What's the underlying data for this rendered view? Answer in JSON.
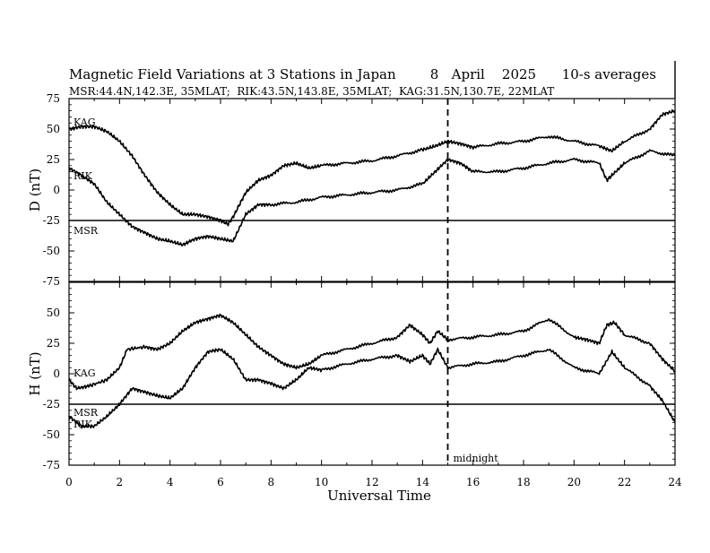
{
  "chart_data": [
    {
      "type": "line",
      "panel": "top",
      "title": "Magnetic Field Variations at 3 Stations in Japan        8   April    2025      10-s averages",
      "subtitle": "MSR:44.4N,142.3E, 35MLAT;  RIK:43.5N,143.8E, 35MLAT;  KAG:31.5N,130.7E, 22MLAT",
      "ylabel": "D (nT)",
      "xlabel": "",
      "xlim": [
        0,
        24
      ],
      "ylim": [
        -75,
        75
      ],
      "yticks": [
        "75",
        "50",
        "25",
        "0",
        "-25",
        "-50",
        "-75"
      ],
      "station_labels": [
        "KAG",
        "RIK",
        "MSR"
      ],
      "series": [
        {
          "name": "KAG",
          "x": [
            0,
            0.5,
            1,
            1.5,
            2,
            2.5,
            3,
            3.5,
            4,
            4.5,
            5,
            5.5,
            6,
            6.3,
            6.5,
            6.8,
            7,
            7.5,
            8,
            8.5,
            9,
            9.5,
            10,
            11,
            12,
            13,
            14,
            14.5,
            15,
            15.5,
            16,
            17,
            18,
            19,
            20,
            21,
            21.5,
            22,
            23,
            23.5,
            24
          ],
          "y": [
            50,
            52,
            52,
            48,
            40,
            28,
            12,
            -2,
            -12,
            -20,
            -20,
            -22,
            -25,
            -28,
            -22,
            -10,
            -2,
            8,
            12,
            20,
            22,
            18,
            20,
            22,
            24,
            28,
            33,
            36,
            40,
            38,
            35,
            38,
            40,
            44,
            40,
            36,
            32,
            40,
            50,
            62,
            65
          ]
        },
        {
          "name": "RIK",
          "x": [
            0,
            0.5,
            1,
            1.5,
            2,
            2.5,
            3,
            3.5,
            4,
            4.5,
            5,
            5.5,
            6,
            6.5,
            7,
            7.5,
            8,
            9,
            10,
            11,
            12,
            13,
            14,
            14.5,
            15,
            15.5,
            16,
            17,
            18,
            19,
            20,
            21,
            21.3,
            21.5,
            22,
            23,
            24
          ],
          "y": [
            18,
            12,
            5,
            -10,
            -20,
            -30,
            -35,
            -40,
            -42,
            -45,
            -40,
            -38,
            -40,
            -42,
            -20,
            -12,
            -12,
            -10,
            -6,
            -4,
            -2,
            0,
            5,
            15,
            25,
            22,
            15,
            15,
            18,
            22,
            25,
            22,
            8,
            12,
            22,
            32,
            28
          ]
        },
        {
          "name": "MSR",
          "x": [
            0,
            24
          ],
          "y": [
            -25,
            -25
          ]
        }
      ]
    },
    {
      "type": "line",
      "panel": "bottom",
      "title": "",
      "ylabel": "H (nT)",
      "xlabel": "Universal Time",
      "xlim": [
        0,
        24
      ],
      "ylim": [
        -75,
        75
      ],
      "xticks": [
        "0",
        "2",
        "4",
        "6",
        "8",
        "10",
        "12",
        "14",
        "16",
        "18",
        "20",
        "22",
        "24"
      ],
      "yticks": [
        "50",
        "25",
        "0",
        "-25",
        "-50",
        "-75"
      ],
      "station_labels": [
        "KAG",
        "MSR",
        "RIK"
      ],
      "annotation": "midnight",
      "midnight_x": 15,
      "series": [
        {
          "name": "KAG",
          "x": [
            0,
            0.3,
            0.8,
            1.5,
            2,
            2.3,
            3,
            3.5,
            4,
            4.5,
            5,
            5.5,
            6,
            6.5,
            7,
            7.5,
            8,
            8.5,
            9,
            9.5,
            10,
            11,
            12,
            13,
            13.5,
            14,
            14.3,
            14.6,
            15,
            16,
            17,
            18,
            19,
            20,
            20.5,
            21,
            21.3,
            21.6,
            22,
            23,
            23.5,
            24
          ],
          "y": [
            -5,
            -12,
            -10,
            -5,
            5,
            20,
            22,
            20,
            25,
            35,
            42,
            45,
            48,
            42,
            32,
            22,
            15,
            8,
            5,
            8,
            15,
            20,
            25,
            30,
            40,
            32,
            25,
            35,
            28,
            30,
            32,
            35,
            45,
            30,
            28,
            25,
            40,
            42,
            32,
            25,
            12,
            2
          ]
        },
        {
          "name": "RIK",
          "x": [
            0,
            0.5,
            1,
            1.5,
            2,
            2.5,
            3,
            3.5,
            4,
            4.5,
            5,
            5.5,
            6,
            6.5,
            7,
            7.5,
            8,
            8.5,
            9,
            9.5,
            10,
            11,
            12,
            13,
            13.5,
            14,
            14.3,
            14.6,
            15,
            16,
            17,
            18,
            19,
            20,
            21,
            21.5,
            22,
            23,
            23.5,
            24
          ],
          "y": [
            -35,
            -43,
            -43,
            -35,
            -25,
            -12,
            -15,
            -18,
            -20,
            -12,
            5,
            18,
            20,
            12,
            -5,
            -5,
            -8,
            -12,
            -5,
            5,
            3,
            8,
            12,
            15,
            10,
            15,
            8,
            20,
            5,
            8,
            10,
            15,
            20,
            5,
            0,
            18,
            5,
            -10,
            -22,
            -40
          ]
        },
        {
          "name": "MSR",
          "x": [
            0,
            24
          ],
          "y": [
            -25,
            -25
          ]
        }
      ]
    }
  ]
}
